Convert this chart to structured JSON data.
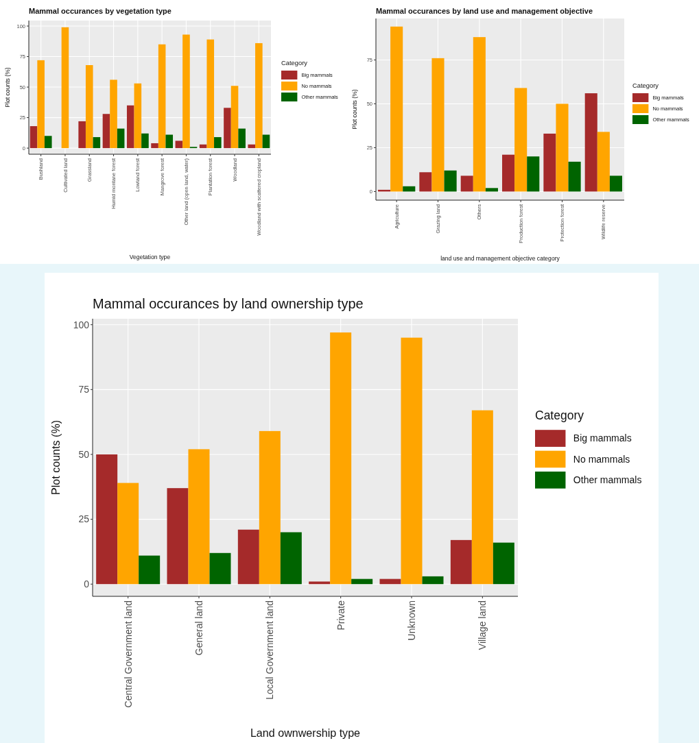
{
  "chart_data": [
    {
      "type": "bar",
      "title": "Mammal occurances by vegetation type",
      "xlabel": "Vegetation type",
      "ylabel": "Plot counts (%)",
      "legend_title": "Category",
      "legend": "right",
      "grid": true,
      "categories": [
        "Bushland",
        "Cultivated land",
        "Grassland",
        "Humid montane forest",
        "Lowland forest",
        "Mangrove forest",
        "Other land (open land, water)",
        "Plantation forest",
        "Woodland",
        "Woodland with scattered cropland"
      ],
      "series": [
        {
          "name": "Big mammals",
          "color": "#a52a2a",
          "values": [
            18,
            0,
            22,
            28,
            35,
            4,
            6,
            3,
            33,
            3
          ]
        },
        {
          "name": "No mammals",
          "color": "#ffa500",
          "values": [
            72,
            99,
            68,
            56,
            53,
            85,
            93,
            89,
            51,
            86
          ]
        },
        {
          "name": "Other mammals",
          "color": "#006400",
          "values": [
            10,
            0,
            9,
            16,
            12,
            11,
            1,
            9,
            16,
            11
          ]
        }
      ],
      "ylim": [
        -5,
        104.5
      ],
      "yticks": [
        0,
        25,
        50,
        75,
        100
      ]
    },
    {
      "type": "bar",
      "title": "Mammal occurances by land use and management objective",
      "xlabel": "land use and management objective category",
      "ylabel": "Plot counts (%)",
      "legend_title": "Category",
      "legend": "right",
      "grid": true,
      "categories": [
        "Agriculture",
        "Grazing land",
        "Others",
        "Production forest",
        "Protection forest",
        "Wildlife reserve"
      ],
      "series": [
        {
          "name": "Big mammals",
          "color": "#a52a2a",
          "values": [
            1,
            11,
            9,
            21,
            33,
            56
          ]
        },
        {
          "name": "No mammals",
          "color": "#ffa500",
          "values": [
            94,
            76,
            88,
            59,
            50,
            34
          ]
        },
        {
          "name": "Other mammals",
          "color": "#006400",
          "values": [
            3,
            12,
            2,
            20,
            17,
            9
          ]
        }
      ],
      "ylim": [
        -4.9,
        98.6
      ],
      "yticks": [
        0,
        25,
        50,
        75
      ]
    },
    {
      "type": "bar",
      "title": "Mammal occurances by land ownership type",
      "xlabel": "Land ownwership type",
      "ylabel": "Plot counts (%)",
      "legend_title": "Category",
      "legend": "right",
      "grid": true,
      "categories": [
        "Central Government land",
        "General land",
        "Local Government land",
        "Private",
        "Unknown",
        "Village land"
      ],
      "series": [
        {
          "name": "Big mammals",
          "color": "#a52a2a",
          "values": [
            50,
            37,
            21,
            1,
            2,
            17
          ]
        },
        {
          "name": "No mammals",
          "color": "#ffa500",
          "values": [
            39,
            52,
            59,
            97,
            95,
            67
          ]
        },
        {
          "name": "Other mammals",
          "color": "#006400",
          "values": [
            11,
            12,
            20,
            2,
            3,
            16
          ]
        }
      ],
      "ylim": [
        -4.7,
        102.3
      ],
      "yticks": [
        0,
        25,
        50,
        75,
        100
      ]
    }
  ]
}
